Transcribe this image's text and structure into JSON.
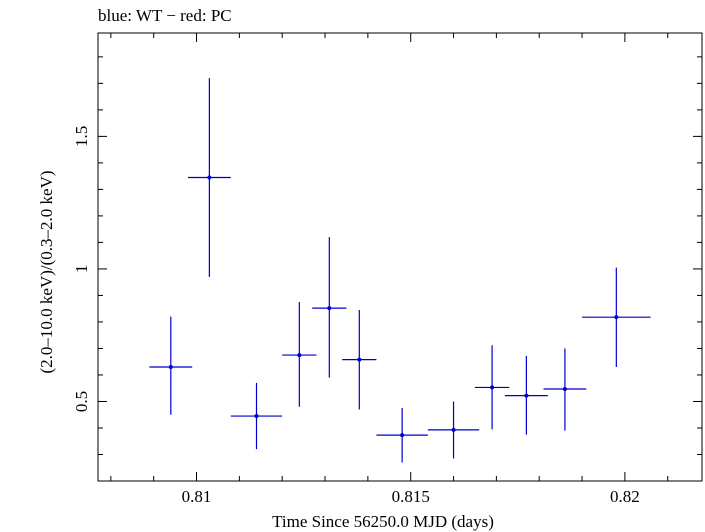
{
  "chart_data": {
    "type": "scatter",
    "title": "blue: WT − red: PC",
    "xlabel": "Time Since 56250.0 MJD (days)",
    "ylabel": "(2.0–10.0 keV)/(0.3–2.0 keV)",
    "xlim": [
      0.8077,
      0.8218
    ],
    "ylim": [
      0.2,
      1.89
    ],
    "x_ticks": [
      0.81,
      0.815,
      0.82
    ],
    "x_tick_labels": [
      "0.81",
      "0.815",
      "0.82"
    ],
    "y_ticks": [
      0.5,
      1,
      1.5
    ],
    "y_tick_labels": [
      "0.5",
      "1",
      "1.5"
    ],
    "grid": false,
    "series": [
      {
        "color": "#0000cc",
        "points": [
          {
            "x": 0.8094,
            "xerr": 0.0005,
            "y": 0.63,
            "ylo": 0.45,
            "yhi": 0.82
          },
          {
            "x": 0.8103,
            "xerr": 0.0005,
            "y": 1.345,
            "ylo": 0.97,
            "yhi": 1.72
          },
          {
            "x": 0.8114,
            "xerr": 0.0006,
            "y": 0.445,
            "ylo": 0.32,
            "yhi": 0.57
          },
          {
            "x": 0.8124,
            "xerr": 0.0004,
            "y": 0.675,
            "ylo": 0.48,
            "yhi": 0.875
          },
          {
            "x": 0.8131,
            "xerr": 0.0004,
            "y": 0.852,
            "ylo": 0.59,
            "yhi": 1.12
          },
          {
            "x": 0.8138,
            "xerr": 0.0004,
            "y": 0.658,
            "ylo": 0.47,
            "yhi": 0.845
          },
          {
            "x": 0.8148,
            "xerr": 0.0006,
            "y": 0.373,
            "ylo": 0.27,
            "yhi": 0.475
          },
          {
            "x": 0.816,
            "xerr": 0.0006,
            "y": 0.393,
            "ylo": 0.285,
            "yhi": 0.5
          },
          {
            "x": 0.8169,
            "xerr": 0.0004,
            "y": 0.553,
            "ylo": 0.395,
            "yhi": 0.712
          },
          {
            "x": 0.8177,
            "xerr": 0.0005,
            "y": 0.522,
            "ylo": 0.375,
            "yhi": 0.672
          },
          {
            "x": 0.8186,
            "xerr": 0.0005,
            "y": 0.547,
            "ylo": 0.39,
            "yhi": 0.7
          },
          {
            "x": 0.8198,
            "xerr": 0.0008,
            "y": 0.818,
            "ylo": 0.63,
            "yhi": 1.005
          }
        ]
      }
    ]
  }
}
